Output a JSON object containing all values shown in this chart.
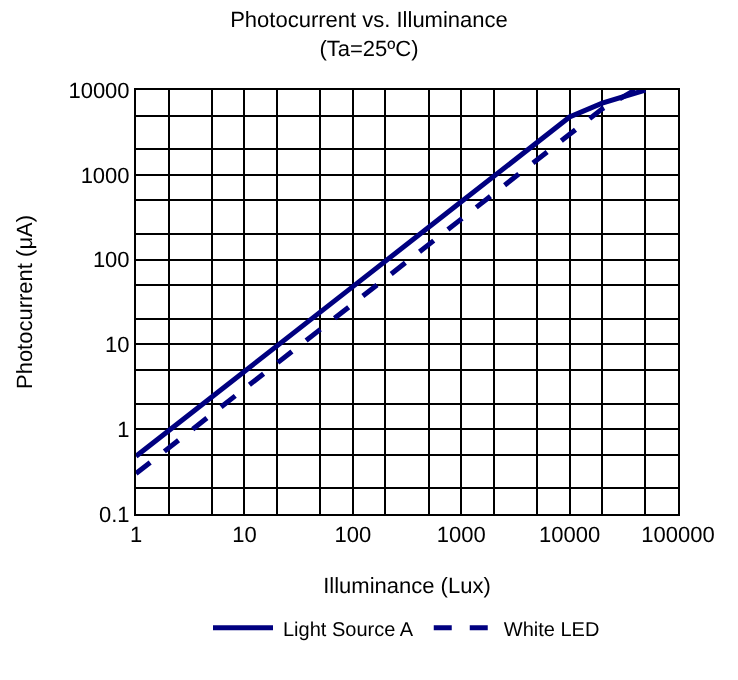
{
  "chart_data": {
    "type": "line",
    "title": "Photocurrent vs. Illuminance",
    "subtitle": "(Ta=25ºC)",
    "xlabel": "Illuminance (Lux)",
    "ylabel": "Photocurrent (μA)",
    "log": "xy",
    "xlim": [
      1,
      100000
    ],
    "ylim": [
      0.1,
      10000
    ],
    "xticks": [
      1,
      10,
      100,
      1000,
      10000,
      100000
    ],
    "yticks": [
      0.1,
      1,
      10,
      100,
      1000,
      10000
    ],
    "grid": true,
    "legend": "bottom",
    "marker": "none",
    "series": [
      {
        "name": "Light Source A",
        "color": "#000080",
        "line_style": "solid",
        "x": [
          1,
          10,
          100,
          1000,
          10000,
          20000,
          50000
        ],
        "values": [
          0.48,
          4.8,
          48,
          480,
          4800,
          7000,
          10000
        ]
      },
      {
        "name": "White LED",
        "color": "#000080",
        "line_style": "dashed",
        "x": [
          1,
          10,
          100,
          1000,
          10000,
          20000,
          40000
        ],
        "values": [
          0.3,
          3,
          30,
          300,
          3000,
          6000,
          10000
        ]
      }
    ]
  }
}
